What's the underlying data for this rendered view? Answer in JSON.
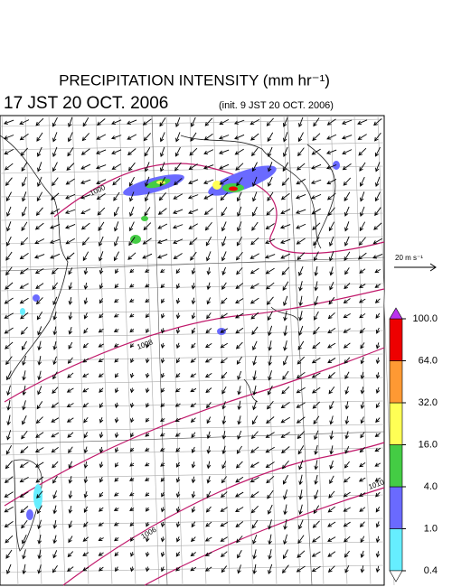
{
  "header": {
    "title": "PRECIPITATION INTENSITY (mm hr⁻¹)",
    "time": "17 JST 20 OCT. 2006",
    "init": "(init. 9 JST 20 OCT. 2006)"
  },
  "vector_legend": {
    "label": "20 m s⁻¹"
  },
  "colorbar": {
    "levels": [
      {
        "value": 0.4,
        "label": "0.4"
      },
      {
        "value": 1,
        "label": "1.0"
      },
      {
        "value": 4,
        "label": "4.0"
      },
      {
        "value": 16,
        "label": "16.0"
      },
      {
        "value": 32,
        "label": "32.0"
      },
      {
        "value": 64,
        "label": "64.0"
      },
      {
        "value": 100,
        "label": "100.0"
      }
    ],
    "colors": [
      "#66eeff",
      "#6a6aff",
      "#44cc44",
      "#ffff55",
      "#ff9933",
      "#ee0000"
    ],
    "over_color": "#bb33ee"
  },
  "contour_labels": [
    "1000",
    "1008",
    "1006",
    "1010"
  ]
}
